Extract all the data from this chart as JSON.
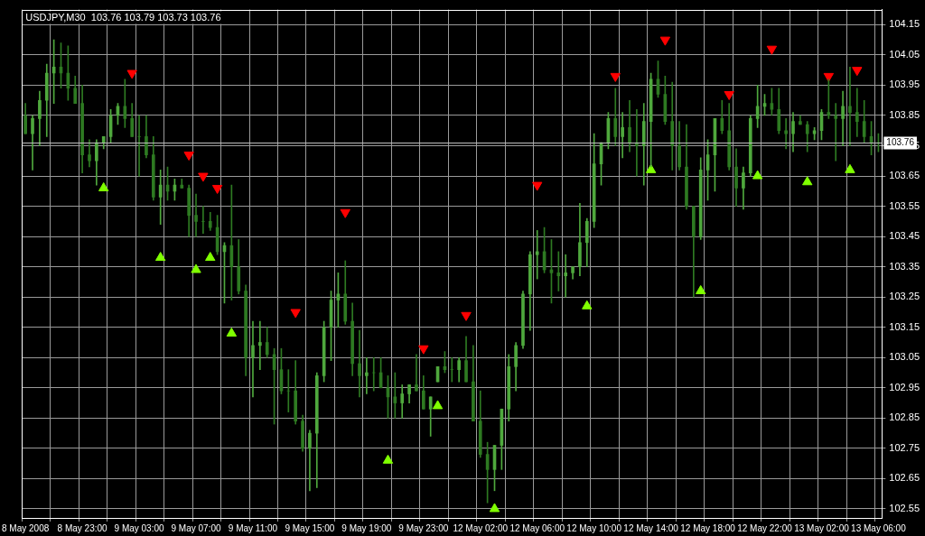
{
  "chart_data": {
    "type": "candlestick",
    "title": "USDJPY,M30  103.76 103.79 103.73 103.76",
    "categories": [
      "8 May 2008",
      null,
      null,
      null,
      null,
      null,
      null,
      null,
      "8 May 23:00",
      null,
      null,
      null,
      null,
      null,
      null,
      null,
      "9 May 03:00",
      null,
      null,
      null,
      null,
      null,
      null,
      null,
      "9 May 07:00",
      null,
      null,
      null,
      null,
      null,
      null,
      null,
      "9 May 11:00",
      null,
      null,
      null,
      null,
      null,
      null,
      null,
      "9 May 15:00",
      null,
      null,
      null,
      null,
      null,
      null,
      null,
      "9 May 19:00",
      null,
      null,
      null,
      null,
      null,
      null,
      null,
      "9 May 23:00",
      null,
      null,
      null,
      null,
      null,
      null,
      null,
      "12 May 02:00",
      null,
      null,
      null,
      null,
      null,
      null,
      null,
      "12 May 06:00",
      null,
      null,
      null,
      null,
      null,
      null,
      null,
      "12 May 10:00",
      null,
      null,
      null,
      null,
      null,
      null,
      null,
      "12 May 14:00",
      null,
      null,
      null,
      null,
      null,
      null,
      null,
      "12 May 18:00",
      null,
      null,
      null,
      null,
      null,
      null,
      null,
      "12 May 22:00",
      null,
      null,
      null,
      null,
      null,
      null,
      null,
      "13 May 02:00",
      null,
      null,
      null,
      null,
      null,
      null,
      null,
      "13 May 06:00"
    ],
    "colors": [
      "#2e7a22",
      "#4fa83d",
      "#4fa83d",
      "#4fa83d",
      "#4fa83d",
      "#2e7a22",
      "#2e7a22",
      "#2e7a22",
      "#2e7a22",
      "#2e7a22",
      "#4fa83d",
      "#4fa83d",
      "#4fa83d",
      "#4fa83d",
      "#2e7a22",
      "#2e7a22",
      "#2e7a22",
      "#2e7a22",
      "#2e7a22",
      "#4fa83d",
      "#2e7a22",
      "#4fa83d",
      "#2e7a22",
      "#2e7a22",
      "#2e7a22",
      "#2e7a22",
      "#2e7a22",
      "#2e7a22",
      "#4fa83d",
      "#2e7a22",
      "#2e7a22",
      "#2e7a22",
      "#4fa83d",
      "#4fa83d",
      "#2e7a22",
      "#2e7a22",
      "#2e7a22",
      "#2e7a22",
      "#2e7a22",
      "#2e7a22",
      "#4fa83d",
      "#4fa83d",
      "#4fa83d",
      "#4fa83d",
      "#4fa83d",
      "#2e7a22",
      "#2e7a22",
      "#2e7a22",
      "#4fa83d",
      "#2e7a22",
      "#2e7a22",
      "#2e7a22",
      "#2e7a22",
      "#4fa83d",
      "#4fa83d",
      "#2e7a22",
      "#2e7a22",
      "#4fa83d",
      "#4fa83d",
      "#2e7a22",
      "#2e7a22",
      "#4fa83d",
      "#2e7a22",
      "#2e7a22",
      "#2e7a22",
      "#2e7a22",
      "#4fa83d",
      "#4fa83d",
      "#4fa83d",
      "#4fa83d",
      "#4fa83d",
      "#4fa83d",
      "#4fa83d",
      "#2e7a22",
      "#2e7a22",
      "#2e7a22",
      "#4fa83d",
      "#4fa83d",
      "#4fa83d",
      "#4fa83d",
      "#4fa83d",
      "#4fa83d",
      "#4fa83d",
      "#2e7a22",
      "#4fa83d",
      "#2e7a22",
      "#2e7a22",
      "#4fa83d",
      "#4fa83d",
      "#2e7a22",
      "#2e7a22",
      "#2e7a22",
      "#2e7a22",
      "#2e7a22",
      "#2e7a22",
      "#4fa83d",
      "#4fa83d",
      "#4fa83d",
      "#2e7a22",
      "#2e7a22",
      "#2e7a22",
      "#4fa83d",
      "#4fa83d",
      "#4fa83d",
      "#4fa83d",
      "#2e7a22",
      "#2e7a22",
      "#2e7a22",
      "#4fa83d",
      "#2e7a22",
      "#2e7a22",
      "#4fa83d",
      "#4fa83d",
      "#2e7a22",
      "#2e7a22",
      "#4fa83d",
      "#2e7a22",
      "#2e7a22",
      "#2e7a22",
      "#2e7a22",
      "#2e7a22"
    ],
    "ohlc": [
      [
        103.85,
        103.89,
        103.79,
        103.79
      ],
      [
        103.79,
        103.85,
        103.67,
        103.84
      ],
      [
        103.84,
        103.93,
        103.75,
        103.9
      ],
      [
        103.9,
        104.02,
        103.78,
        103.99
      ],
      [
        103.99,
        104.1,
        103.89,
        104.01
      ],
      [
        104.01,
        104.09,
        103.94,
        103.99
      ],
      [
        103.99,
        104.08,
        103.9,
        103.94
      ],
      [
        103.94,
        103.98,
        103.89,
        103.89
      ],
      [
        103.89,
        103.95,
        103.66,
        103.72
      ],
      [
        103.72,
        103.77,
        103.68,
        103.7
      ],
      [
        103.7,
        103.77,
        103.62,
        103.76
      ],
      [
        103.76,
        103.78,
        103.74,
        103.78
      ],
      [
        103.78,
        103.87,
        103.76,
        103.85
      ],
      [
        103.85,
        103.89,
        103.82,
        103.88
      ],
      [
        103.88,
        103.97,
        103.81,
        103.84
      ],
      [
        103.84,
        103.89,
        103.78,
        103.78
      ],
      [
        103.78,
        103.85,
        103.65,
        103.78
      ],
      [
        103.78,
        103.85,
        103.71,
        103.72
      ],
      [
        103.72,
        103.78,
        103.57,
        103.58
      ],
      [
        103.58,
        103.67,
        103.49,
        103.62
      ],
      [
        103.62,
        103.68,
        103.57,
        103.6
      ],
      [
        103.6,
        103.64,
        103.57,
        103.62
      ],
      [
        103.62,
        103.64,
        103.61,
        103.61
      ],
      [
        103.61,
        103.62,
        103.45,
        103.52
      ],
      [
        103.52,
        103.59,
        103.45,
        103.5
      ],
      [
        103.5,
        103.55,
        103.46,
        103.5
      ],
      [
        103.5,
        103.53,
        103.47,
        103.48
      ],
      [
        103.48,
        103.52,
        103.39,
        103.4
      ],
      [
        103.4,
        103.43,
        103.23,
        103.42
      ],
      [
        103.42,
        103.62,
        103.24,
        103.35
      ],
      [
        103.35,
        103.44,
        103.26,
        103.27
      ],
      [
        103.27,
        103.29,
        102.99,
        103.05
      ],
      [
        103.05,
        103.17,
        102.92,
        103.09
      ],
      [
        103.09,
        103.17,
        103.01,
        103.1
      ],
      [
        103.1,
        103.15,
        103.05,
        103.06
      ],
      [
        103.06,
        103.08,
        102.83,
        103.01
      ],
      [
        103.01,
        103.08,
        102.93,
        102.94
      ],
      [
        102.94,
        103.01,
        102.87,
        102.94
      ],
      [
        102.94,
        103.04,
        102.83,
        102.84
      ],
      [
        102.84,
        102.86,
        102.74,
        102.75
      ],
      [
        102.75,
        102.81,
        102.61,
        102.8
      ],
      [
        102.8,
        103.0,
        102.62,
        102.99
      ],
      [
        102.99,
        103.17,
        102.97,
        103.15
      ],
      [
        103.15,
        103.27,
        103.04,
        103.24
      ],
      [
        103.24,
        103.33,
        103.15,
        103.26
      ],
      [
        103.26,
        103.37,
        103.16,
        103.17
      ],
      [
        103.17,
        103.23,
        102.99,
        103.03
      ],
      [
        103.03,
        103.14,
        102.92,
        102.99
      ],
      [
        102.99,
        103.05,
        102.93,
        103.0
      ],
      [
        103.0,
        103.05,
        102.94,
        103.0
      ],
      [
        103.0,
        103.05,
        102.95,
        102.95
      ],
      [
        102.95,
        102.99,
        102.85,
        102.92
      ],
      [
        102.92,
        103.0,
        102.85,
        102.9
      ],
      [
        102.9,
        102.96,
        102.85,
        102.93
      ],
      [
        102.93,
        102.96,
        102.9,
        102.96
      ],
      [
        102.96,
        103.06,
        102.94,
        102.94
      ],
      [
        102.94,
        102.99,
        102.88,
        102.88
      ],
      [
        102.88,
        102.92,
        102.79,
        102.92
      ],
      [
        102.97,
        103.02,
        102.97,
        103.02
      ],
      [
        103.02,
        103.07,
        103.0,
        103.01
      ],
      [
        103.01,
        103.05,
        102.97,
        103.01
      ],
      [
        103.01,
        103.05,
        102.97,
        103.04
      ],
      [
        103.04,
        103.12,
        102.97,
        102.97
      ],
      [
        102.97,
        103.09,
        102.84,
        102.84
      ],
      [
        102.84,
        102.94,
        102.72,
        102.73
      ],
      [
        102.73,
        102.77,
        102.57,
        102.68
      ],
      [
        102.68,
        102.76,
        102.61,
        102.76
      ],
      [
        102.76,
        102.88,
        102.68,
        102.88
      ],
      [
        102.88,
        103.06,
        102.84,
        103.02
      ],
      [
        103.02,
        103.1,
        102.94,
        103.09
      ],
      [
        103.09,
        103.27,
        103.08,
        103.26
      ],
      [
        103.26,
        103.4,
        103.14,
        103.39
      ],
      [
        103.39,
        103.47,
        103.31,
        103.4
      ],
      [
        103.4,
        103.48,
        103.33,
        103.34
      ],
      [
        103.34,
        103.44,
        103.23,
        103.33
      ],
      [
        103.33,
        103.4,
        103.27,
        103.32
      ],
      [
        103.32,
        103.39,
        103.25,
        103.33
      ],
      [
        103.33,
        103.35,
        103.31,
        103.35
      ],
      [
        103.35,
        103.56,
        103.32,
        103.43
      ],
      [
        103.43,
        103.51,
        103.35,
        103.5
      ],
      [
        103.5,
        103.79,
        103.48,
        103.69
      ],
      [
        103.69,
        103.76,
        103.62,
        103.76
      ],
      [
        103.76,
        103.86,
        103.74,
        103.84
      ],
      [
        103.84,
        103.94,
        103.75,
        103.78
      ],
      [
        103.78,
        103.86,
        103.71,
        103.81
      ],
      [
        103.81,
        103.9,
        103.73,
        103.76
      ],
      [
        103.76,
        103.87,
        103.65,
        103.75
      ],
      [
        103.75,
        103.89,
        103.62,
        103.83
      ],
      [
        103.83,
        103.99,
        103.68,
        103.97
      ],
      [
        103.97,
        104.03,
        103.91,
        103.92
      ],
      [
        103.92,
        103.98,
        103.82,
        103.83
      ],
      [
        103.83,
        103.96,
        103.67,
        103.75
      ],
      [
        103.75,
        103.83,
        103.67,
        103.68
      ],
      [
        103.68,
        103.82,
        103.54,
        103.55
      ],
      [
        103.55,
        103.55,
        103.25,
        103.45
      ],
      [
        103.45,
        103.71,
        103.44,
        103.67
      ],
      [
        103.67,
        103.77,
        103.57,
        103.72
      ],
      [
        103.72,
        103.84,
        103.6,
        103.84
      ],
      [
        103.84,
        103.9,
        103.79,
        103.8
      ],
      [
        103.8,
        103.89,
        103.67,
        103.68
      ],
      [
        103.68,
        103.74,
        103.55,
        103.61
      ],
      [
        103.61,
        103.68,
        103.54,
        103.66
      ],
      [
        103.66,
        103.85,
        103.65,
        103.84
      ],
      [
        103.84,
        103.95,
        103.81,
        103.88
      ],
      [
        103.88,
        103.92,
        103.85,
        103.89
      ],
      [
        103.89,
        103.94,
        103.85,
        103.87
      ],
      [
        103.87,
        103.94,
        103.79,
        103.8
      ],
      [
        103.8,
        103.84,
        103.74,
        103.79
      ],
      [
        103.79,
        103.86,
        103.73,
        103.83
      ],
      [
        103.83,
        103.85,
        103.82,
        103.82
      ],
      [
        103.82,
        103.83,
        103.73,
        103.79
      ],
      [
        103.79,
        103.81,
        103.77,
        103.8
      ],
      [
        103.8,
        103.87,
        103.77,
        103.86
      ],
      [
        103.86,
        103.97,
        103.84,
        103.85
      ],
      [
        103.85,
        103.89,
        103.7,
        103.84
      ],
      [
        103.84,
        103.93,
        103.75,
        103.88
      ],
      [
        103.88,
        104.01,
        103.75,
        103.86
      ],
      [
        103.86,
        103.94,
        103.78,
        103.83
      ],
      [
        103.83,
        103.9,
        103.76,
        103.78
      ],
      [
        103.78,
        103.83,
        103.72,
        103.76
      ],
      [
        103.76,
        103.79,
        103.73,
        103.76
      ]
    ],
    "series": [
      {
        "type": "scatter",
        "color": "#ff0000",
        "values": [
          null,
          null,
          null,
          null,
          null,
          null,
          null,
          null,
          null,
          null,
          null,
          null,
          null,
          null,
          null,
          103.99,
          null,
          null,
          null,
          null,
          null,
          null,
          null,
          103.72,
          null,
          103.65,
          null,
          103.61,
          null,
          null,
          null,
          null,
          null,
          null,
          null,
          null,
          null,
          null,
          103.2,
          null,
          null,
          null,
          null,
          null,
          null,
          103.53,
          null,
          null,
          null,
          null,
          null,
          null,
          null,
          null,
          null,
          null,
          103.08,
          null,
          null,
          null,
          null,
          null,
          103.19,
          null,
          null,
          null,
          null,
          null,
          null,
          null,
          null,
          null,
          103.62,
          null,
          null,
          null,
          null,
          null,
          null,
          null,
          null,
          null,
          null,
          103.98,
          null,
          null,
          null,
          null,
          null,
          null,
          104.1,
          null,
          null,
          null,
          null,
          null,
          null,
          null,
          null,
          103.92,
          null,
          null,
          null,
          null,
          null,
          104.07,
          null,
          null,
          null,
          null,
          null,
          null,
          null,
          103.98,
          null,
          null,
          null,
          104.0,
          null,
          null,
          null
        ]
      },
      {
        "type": "scatter",
        "color": "#80ff00",
        "values": [
          null,
          null,
          null,
          null,
          null,
          null,
          null,
          null,
          null,
          null,
          null,
          103.61,
          null,
          null,
          null,
          null,
          null,
          null,
          null,
          103.38,
          null,
          null,
          null,
          null,
          103.34,
          null,
          103.38,
          null,
          null,
          103.13,
          null,
          null,
          null,
          null,
          null,
          null,
          null,
          null,
          null,
          null,
          null,
          null,
          null,
          null,
          null,
          null,
          null,
          null,
          null,
          null,
          null,
          102.71,
          null,
          null,
          null,
          null,
          null,
          null,
          102.89,
          null,
          null,
          null,
          null,
          null,
          null,
          null,
          102.55,
          null,
          null,
          null,
          null,
          null,
          null,
          null,
          null,
          null,
          null,
          null,
          null,
          103.22,
          null,
          null,
          null,
          null,
          null,
          null,
          null,
          null,
          103.67,
          null,
          null,
          null,
          null,
          null,
          null,
          103.27,
          null,
          null,
          null,
          null,
          null,
          null,
          null,
          103.65,
          null,
          null,
          null,
          null,
          null,
          null,
          103.63,
          null,
          null,
          null,
          null,
          null,
          103.67,
          null,
          null,
          null,
          null
        ]
      }
    ],
    "marker": "triangle",
    "ylim": [
      102.52,
      104.2
    ],
    "yticks": [
      102.55,
      102.65,
      102.75,
      102.85,
      102.95,
      103.05,
      103.15,
      103.25,
      103.35,
      103.45,
      103.55,
      103.65,
      103.75,
      103.85,
      103.95,
      104.05,
      104.15
    ],
    "ref_lines": [
      {
        "axis": "y",
        "value": 103.76,
        "label": "103.76",
        "color": "#c0c0c0"
      }
    ],
    "grid": true,
    "legend": false
  }
}
